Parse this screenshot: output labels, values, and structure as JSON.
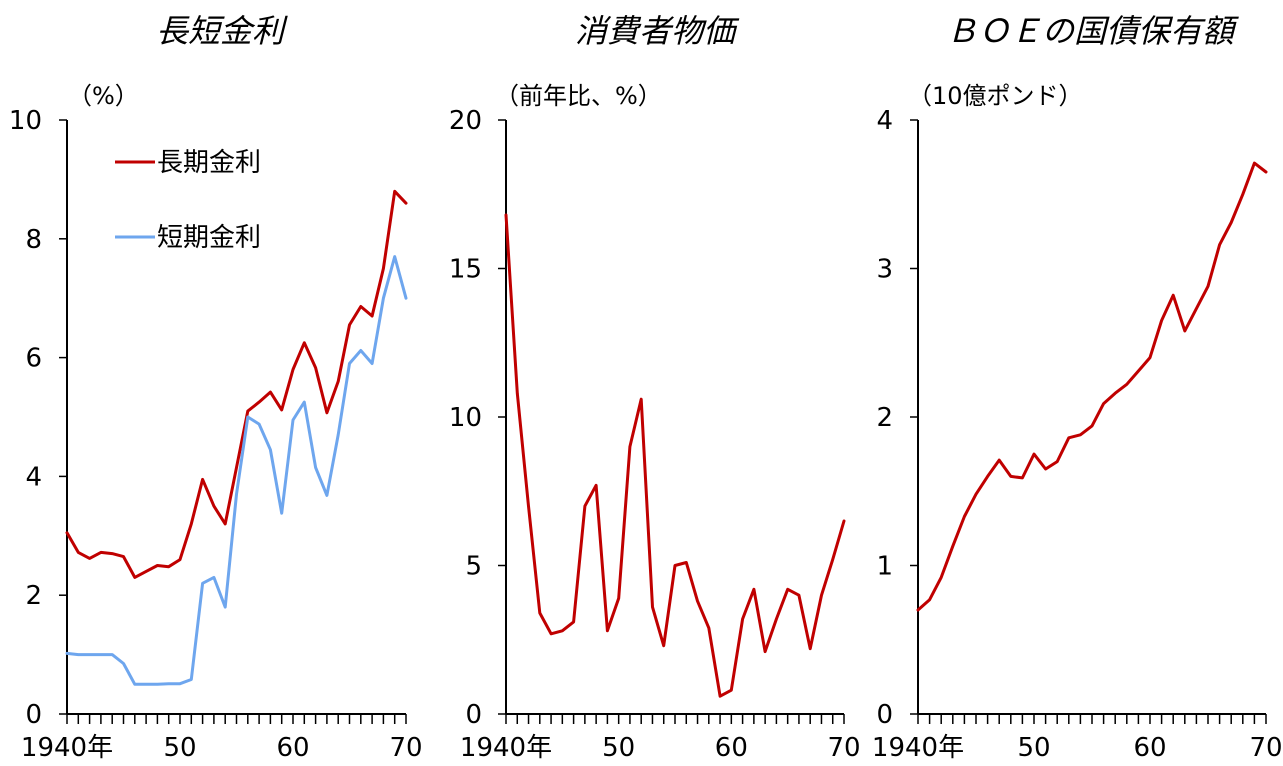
{
  "chart_data": [
    {
      "type": "line",
      "title": "長短金利",
      "unit_label": "（%）",
      "xlabel": "",
      "ylabel": "",
      "ylim": [
        0,
        10
      ],
      "yticks": [
        "0",
        "2",
        "4",
        "6",
        "8",
        "10"
      ],
      "xlim": [
        1940,
        1970
      ],
      "xticks": [
        {
          "x": 1940,
          "label": "1940年"
        },
        {
          "x": 1950,
          "label": "50"
        },
        {
          "x": 1960,
          "label": "60"
        },
        {
          "x": 1970,
          "label": "70"
        }
      ],
      "grid": false,
      "legend": "top-left",
      "x": [
        1940,
        1941,
        1942,
        1943,
        1944,
        1945,
        1946,
        1947,
        1948,
        1949,
        1950,
        1951,
        1952,
        1953,
        1954,
        1955,
        1956,
        1957,
        1958,
        1959,
        1960,
        1961,
        1962,
        1963,
        1964,
        1965,
        1966,
        1967,
        1968,
        1969,
        1970
      ],
      "series": [
        {
          "name": "長期金利",
          "color": "#c00000",
          "values": [
            3.05,
            2.72,
            2.62,
            2.72,
            2.7,
            2.65,
            2.3,
            2.4,
            2.5,
            2.48,
            2.6,
            3.2,
            3.95,
            3.5,
            3.2,
            4.15,
            5.1,
            5.25,
            5.42,
            5.12,
            5.8,
            6.25,
            5.83,
            5.07,
            5.6,
            6.55,
            6.86,
            6.7,
            7.5,
            8.8,
            8.6
          ]
        },
        {
          "name": "短期金利",
          "color": "#6ea6ee",
          "values": [
            1.02,
            1.0,
            1.0,
            1.0,
            1.0,
            0.85,
            0.5,
            0.5,
            0.5,
            0.51,
            0.51,
            0.58,
            2.2,
            2.3,
            1.8,
            3.7,
            5.0,
            4.88,
            4.45,
            3.38,
            4.95,
            5.25,
            4.15,
            3.68,
            4.7,
            5.9,
            6.12,
            5.9,
            7.0,
            7.7,
            7.0
          ]
        }
      ]
    },
    {
      "type": "line",
      "title": "消費者物価",
      "unit_label": "（前年比、%）",
      "xlabel": "",
      "ylabel": "",
      "ylim": [
        0,
        20
      ],
      "yticks": [
        "0",
        "5",
        "10",
        "15",
        "20"
      ],
      "xlim": [
        1940,
        1970
      ],
      "xticks": [
        {
          "x": 1940,
          "label": "1940年"
        },
        {
          "x": 1950,
          "label": "50"
        },
        {
          "x": 1960,
          "label": "60"
        },
        {
          "x": 1970,
          "label": "70"
        }
      ],
      "grid": false,
      "legend": "none",
      "x": [
        1940,
        1941,
        1942,
        1943,
        1944,
        1945,
        1946,
        1947,
        1948,
        1949,
        1950,
        1951,
        1952,
        1953,
        1954,
        1955,
        1956,
        1957,
        1958,
        1959,
        1960,
        1961,
        1962,
        1963,
        1964,
        1965,
        1966,
        1967,
        1968,
        1969,
        1970
      ],
      "series": [
        {
          "name": "",
          "color": "#c00000",
          "values": [
            16.8,
            10.8,
            7.0,
            3.4,
            2.7,
            2.8,
            3.1,
            7.0,
            7.7,
            2.8,
            3.9,
            9.0,
            10.6,
            3.6,
            2.3,
            5.0,
            5.1,
            3.8,
            2.9,
            0.6,
            0.8,
            3.2,
            4.2,
            2.1,
            3.2,
            4.2,
            4.0,
            2.2,
            4.0,
            5.2,
            6.5
          ]
        }
      ]
    },
    {
      "type": "line",
      "title": "ＢＯＥの国債保有額",
      "unit_label": "（10億ポンド）",
      "xlabel": "",
      "ylabel": "",
      "ylim": [
        0,
        4
      ],
      "yticks": [
        "0",
        "1",
        "2",
        "3",
        "4"
      ],
      "xlim": [
        1940,
        1970
      ],
      "xticks": [
        {
          "x": 1940,
          "label": "1940年"
        },
        {
          "x": 1950,
          "label": "50"
        },
        {
          "x": 1960,
          "label": "60"
        },
        {
          "x": 1970,
          "label": "70"
        }
      ],
      "grid": false,
      "legend": "none",
      "x": [
        1940,
        1941,
        1942,
        1943,
        1944,
        1945,
        1946,
        1947,
        1948,
        1949,
        1950,
        1951,
        1952,
        1953,
        1954,
        1955,
        1956,
        1957,
        1958,
        1959,
        1960,
        1961,
        1962,
        1963,
        1964,
        1965,
        1966,
        1967,
        1968,
        1969,
        1970
      ],
      "series": [
        {
          "name": "",
          "color": "#c00000",
          "values": [
            0.7,
            0.77,
            0.92,
            1.13,
            1.33,
            1.48,
            1.6,
            1.71,
            1.6,
            1.59,
            1.75,
            1.65,
            1.7,
            1.86,
            1.88,
            1.94,
            2.09,
            2.16,
            2.22,
            2.31,
            2.4,
            2.65,
            2.82,
            2.58,
            2.73,
            2.88,
            3.16,
            3.31,
            3.5,
            3.71,
            3.65
          ]
        }
      ]
    }
  ]
}
